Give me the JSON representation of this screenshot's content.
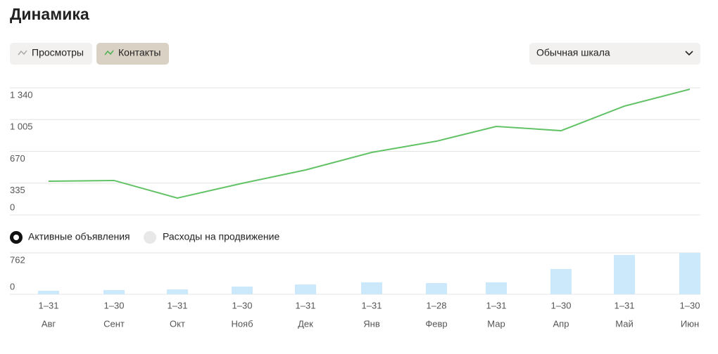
{
  "header": {
    "title": "Динамика"
  },
  "toggles": [
    "Просмотры",
    "Контакты"
  ],
  "scale_select": "Обычная шкала",
  "bar_modes": [
    "Активные объявления",
    "Расходы на продвижение"
  ],
  "chart_data": [
    {
      "type": "line",
      "color": "#62c266",
      "values": [
        355,
        363,
        178,
        333,
        474,
        659,
        777,
        933,
        888,
        1147,
        1325
      ],
      "ylim": [
        0,
        1340
      ],
      "yticks": [
        0,
        335,
        670,
        {
          "value": 1005,
          "label": "1 005"
        },
        {
          "value": 1340,
          "label": "1 340"
        }
      ],
      "grid": true
    },
    {
      "type": "bar",
      "color": "#cce8fb",
      "categories": [
        "Авг",
        "Сент",
        "Окт",
        "Нояб",
        "Дек",
        "Янв",
        "Февр",
        "Мар",
        "Апр",
        "Май",
        "Июн"
      ],
      "periods": [
        "1–31",
        "1–30",
        "1–31",
        "1–30",
        "1–31",
        "1–31",
        "1–28",
        "1–31",
        "1–30",
        "1–31",
        "1–30"
      ],
      "values": [
        65,
        78,
        90,
        142,
        181,
        220,
        207,
        220,
        465,
        723,
        762
      ],
      "ylim": [
        0,
        762
      ],
      "yticks": [
        0,
        762
      ],
      "grid": true
    }
  ]
}
